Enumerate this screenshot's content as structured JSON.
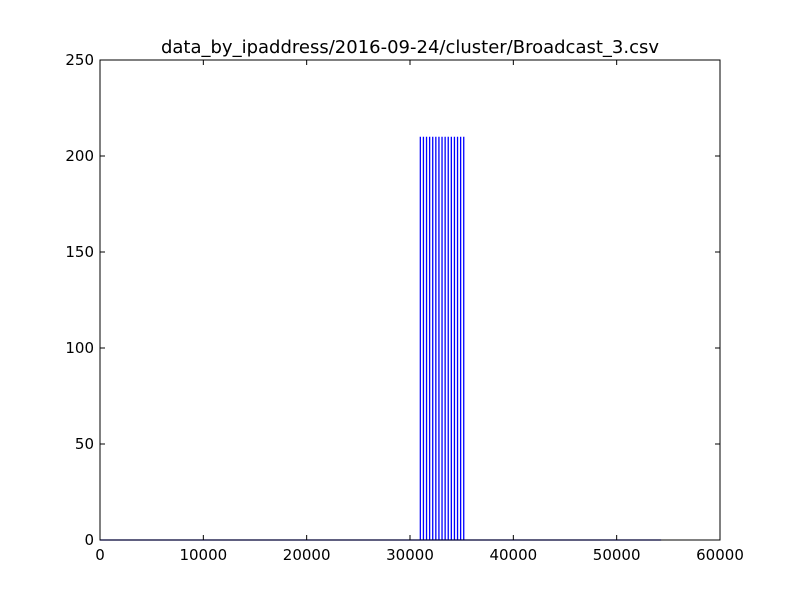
{
  "chart_data": {
    "type": "line",
    "title": "data_by_ipaddress/2016-09-24/cluster/Broadcast_3.csv",
    "xlabel": "",
    "ylabel": "",
    "xlim": [
      0,
      60000
    ],
    "ylim": [
      0,
      250
    ],
    "x_ticks": [
      0,
      10000,
      20000,
      30000,
      40000,
      50000,
      60000
    ],
    "y_ticks": [
      0,
      50,
      100,
      150,
      200,
      250
    ],
    "x_tick_labels": [
      "0",
      "10000",
      "20000",
      "30000",
      "40000",
      "50000",
      "60000"
    ],
    "y_tick_labels": [
      "0",
      "50",
      "100",
      "150",
      "200",
      "250"
    ],
    "grid": false,
    "legend": "none",
    "series": [
      {
        "color": "#0000ff",
        "baseline_range": [
          0,
          54300
        ],
        "spike_height": 210,
        "spike_x": [
          31000,
          31300,
          31600,
          31900,
          32200,
          32500,
          32800,
          33100,
          33400,
          33700,
          34000,
          34300,
          34600,
          34900,
          35200
        ]
      }
    ]
  }
}
